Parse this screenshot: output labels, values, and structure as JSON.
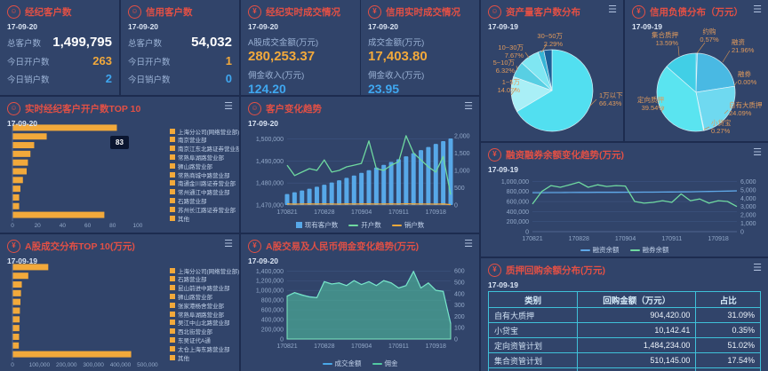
{
  "colors": {
    "accent_red": "#e25045",
    "orange": "#f2a93b",
    "blue": "#3fa7f0",
    "bar_blue": "#57a8e8",
    "green": "#6fd9a0",
    "cyan": "#55e0ee",
    "table_border": "#3fc0d8",
    "panel_bg": "#31446a",
    "page_bg": "#1d2c4f"
  },
  "panels": {
    "broker_customers": {
      "title": "经纪客户数",
      "date": "17-09-20",
      "rows": [
        {
          "label": "总客户数",
          "value": "1,499,795"
        },
        {
          "label": "今日开户数",
          "value": "263"
        },
        {
          "label": "今日销户数",
          "value": "2"
        }
      ]
    },
    "credit_customers": {
      "title": "信用客户数",
      "date": "17-09-20",
      "rows": [
        {
          "label": "总客户数",
          "value": "54,032"
        },
        {
          "label": "今日开户数",
          "value": "1"
        },
        {
          "label": "今日销户数",
          "value": "0"
        }
      ]
    },
    "broker_trades": {
      "title": "经纪实时成交情况",
      "date": "17-09-20",
      "metrics": [
        {
          "label": "A股成交金额(万元)",
          "value": "280,253.37"
        },
        {
          "label": "佣金收入(万元)",
          "value": "124.20"
        }
      ]
    },
    "credit_trades": {
      "title": "信用实时成交情况",
      "date": "17-09-20",
      "metrics": [
        {
          "label": "成交金额(万元)",
          "value": "17,403.80"
        },
        {
          "label": "佣金收入(万元)",
          "value": "23.95"
        }
      ]
    },
    "asset_pie": {
      "title": "资产量客户数分布",
      "date": "17-09-19"
    },
    "debt_pie": {
      "title": "信用负债分布（万元）",
      "date": "17-09-19"
    },
    "top10_open": {
      "title": "实时经纪客户开户数TOP 10",
      "date": "17-09-20"
    },
    "customer_trend": {
      "title": "客户变化趋势",
      "date": "17-09-20"
    },
    "margin_trend": {
      "title": "融资融券余额变化趋势(万元)",
      "date": "17-09-19"
    },
    "top10_trade": {
      "title": "A股成交分布TOP 10(万元)",
      "date": "17-09-19"
    },
    "trade_trend": {
      "title": "A股交易及人民币佣金变化趋势(万元)",
      "date": "17-09-20"
    },
    "pledge_table": {
      "title": "质押回购余额分布(万元)",
      "date": "17-09-19",
      "columns": [
        "类别",
        "回购金额（万元）",
        "占比"
      ],
      "rows": [
        [
          "自有大质押",
          "904,420.00",
          "31.09%"
        ],
        [
          "小贷宝",
          "10,142.41",
          "0.35%"
        ],
        [
          "定向资管计划",
          "1,484,234.00",
          "51.02%"
        ],
        [
          "集合资管计划",
          "510,145.00",
          "17.54%"
        ],
        [
          "合计",
          "2,908,941.41",
          "100.00%"
        ]
      ]
    }
  },
  "chart_data": [
    {
      "id": "top10_open",
      "type": "bar",
      "orientation": "horizontal",
      "title": "实时经纪客户开户数TOP 10",
      "categories": [
        "上海分公司(网络营业部)",
        "南京营业部",
        "南京江东北路证券营业部",
        "常熟阜湖路营业部",
        "狮山路营业部",
        "常熟商城中路营业部",
        "南通金川路证券营业部",
        "常州通江中路营业部",
        "石路营业部",
        "苏州长江路证券营业部",
        "其他"
      ],
      "values": [
        83,
        27,
        17,
        14,
        12,
        11,
        8,
        6,
        5,
        5,
        73
      ],
      "bar_color": "#f2a93b",
      "xticks": [
        0,
        20,
        40,
        60,
        80,
        100
      ],
      "xmax": 105,
      "tooltip": "83"
    },
    {
      "id": "customer_trend",
      "type": "bar+line",
      "title": "客户变化趋势",
      "xticks": [
        "170821",
        "170828",
        "170904",
        "170911",
        "170918"
      ],
      "left_ticks": [
        1470000,
        1480000,
        1490000,
        1500000
      ],
      "left_lim": [
        1470000,
        1503000
      ],
      "right_ticks": [
        0,
        500,
        1000,
        1500,
        2000
      ],
      "right_lim": [
        0,
        2100
      ],
      "series": [
        {
          "name": "现有客户数",
          "type": "bar",
          "axis": "left",
          "color": "#57a8e8",
          "values": [
            1475000,
            1475800,
            1476600,
            1477400,
            1478300,
            1479200,
            1480200,
            1481200,
            1482300,
            1483400,
            1484600,
            1485800,
            1487000,
            1488200,
            1489500,
            1490800,
            1492100,
            1493500,
            1494900,
            1496300,
            1497700,
            1499000,
            1500200
          ]
        },
        {
          "name": "开户数",
          "type": "line",
          "axis": "right",
          "color": "#6fd9a0",
          "values": [
            1150,
            850,
            950,
            1050,
            1000,
            1300,
            950,
            1000,
            1100,
            1150,
            1200,
            1850,
            1050,
            1000,
            1150,
            1250,
            2000,
            1500,
            1300,
            1100,
            950,
            1400,
            300
          ]
        },
        {
          "name": "销户数",
          "type": "line",
          "axis": "right",
          "color": "#f2a93b",
          "values": [
            30,
            25,
            28,
            30,
            27,
            30,
            28,
            26,
            30,
            28,
            30,
            32,
            28,
            27,
            30,
            28,
            35,
            30,
            28,
            27,
            25,
            30,
            10
          ]
        }
      ]
    },
    {
      "id": "margin_trend",
      "type": "line",
      "title": "融资融券余额变化趋势(万元)",
      "xticks": [
        "170821",
        "170828",
        "170904",
        "170911",
        "170918"
      ],
      "left_ticks": [
        0,
        200000,
        400000,
        600000,
        800000,
        1000000
      ],
      "left_lim": [
        0,
        1060000
      ],
      "right_ticks": [
        0,
        1000,
        2000,
        3000,
        4000,
        5000,
        6000
      ],
      "right_lim": [
        0,
        6360
      ],
      "series": [
        {
          "name": "融资余额",
          "type": "line",
          "axis": "left",
          "color": "#5fa8e8",
          "values": [
            775000,
            776000,
            777000,
            778000,
            779000,
            780000,
            781000,
            782000,
            782000,
            783000,
            784000,
            785000,
            786000,
            787000,
            788000,
            790000,
            792000,
            794000,
            797000,
            800000,
            804000,
            808000,
            812000
          ]
        },
        {
          "name": "融券余额",
          "type": "line",
          "axis": "right",
          "color": "#6fd9a0",
          "values": [
            3300,
            4800,
            5500,
            5300,
            5600,
            5900,
            5300,
            5600,
            5400,
            5500,
            5450,
            3600,
            3400,
            3500,
            3700,
            3500,
            4500,
            3700,
            3900,
            3400,
            3700,
            3600,
            3000
          ]
        }
      ]
    },
    {
      "id": "top10_trade",
      "type": "bar",
      "orientation": "horizontal",
      "title": "A股成交分布TOP 10(万元)",
      "categories": [
        "上海分公司(网络营业部)",
        "石路营业部",
        "昆山前进中路营业部",
        "狮山路营业部",
        "张家港杨舍营业部",
        "常熟阜湖路营业部",
        "吴江中山北路营业部",
        "西北街营业部",
        "东吴证代A通",
        "太仓上海东路营业部",
        "其他"
      ],
      "values": [
        131000,
        57000,
        33000,
        30000,
        28000,
        26000,
        25000,
        24000,
        23000,
        22000,
        438000
      ],
      "bar_color": "#f2a93b",
      "xticks": [
        0,
        100000,
        200000,
        300000,
        400000,
        500000
      ],
      "xmax": 520000
    },
    {
      "id": "trade_trend",
      "type": "area+line",
      "title": "A股交易及人民币佣金变化趋势(万元)",
      "xticks": [
        "170821",
        "170828",
        "170904",
        "170911",
        "170918"
      ],
      "left_ticks": [
        0,
        200000,
        400000,
        600000,
        800000,
        1000000,
        1200000,
        1400000
      ],
      "left_lim": [
        0,
        1460000
      ],
      "right_ticks": [
        0,
        100,
        200,
        300,
        400,
        500,
        600
      ],
      "right_lim": [
        0,
        625
      ],
      "series": [
        {
          "name": "成交金额",
          "type": "line",
          "axis": "left",
          "color": "#4aa8e8",
          "values": [
            880000,
            950000,
            900000,
            870000,
            850000,
            1180000,
            1130000,
            1150000,
            1100000,
            1200000,
            1120000,
            1180000,
            1100000,
            1200000,
            1150000,
            1050000,
            1100000,
            1390000,
            1050000,
            1150000,
            1000000,
            980000,
            320000
          ]
        },
        {
          "name": "佣金",
          "type": "area",
          "axis": "right",
          "color": "#52c9a2",
          "values": [
            380,
            410,
            390,
            370,
            365,
            505,
            485,
            495,
            470,
            515,
            480,
            505,
            470,
            515,
            495,
            450,
            470,
            595,
            450,
            495,
            430,
            420,
            135
          ]
        }
      ]
    },
    {
      "id": "asset_pie",
      "type": "pie",
      "title": "资产量客户数分布",
      "slices": [
        {
          "label": "1万以下",
          "pct": 66.43,
          "color": "#52dff0"
        },
        {
          "label": "1~5万",
          "pct": 14.07,
          "color": "#a9eff6"
        },
        {
          "label": "5~10万",
          "pct": 6.32,
          "color": "#58cfe3"
        },
        {
          "label": "10~30万",
          "pct": 7.67,
          "color": "#7fe6f2"
        },
        {
          "label": "30~50万",
          "pct": 2.29,
          "color": "#35b5d6"
        },
        {
          "label": "",
          "pct": 3.22,
          "color": "#1b5e97"
        }
      ]
    },
    {
      "id": "debt_pie",
      "type": "pie",
      "title": "信用负债分布（万元）",
      "slices": [
        {
          "label": "约购",
          "pct": 0.57,
          "color": "#4fc0e8"
        },
        {
          "label": "融资",
          "pct": 21.96,
          "color": "#49b9e3"
        },
        {
          "label": "融券",
          "pct": 0.0,
          "color": "#9adcf0"
        },
        {
          "label": "自有大质押",
          "pct": 24.09,
          "color": "#6fd9f0"
        },
        {
          "label": "小贷宝",
          "pct": 0.27,
          "color": "#bdeef8"
        },
        {
          "label": "定向质押",
          "pct": 39.54,
          "color": "#5ae4f0"
        },
        {
          "label": "集合质押",
          "pct": 13.59,
          "color": "#41cfe6"
        }
      ]
    }
  ]
}
